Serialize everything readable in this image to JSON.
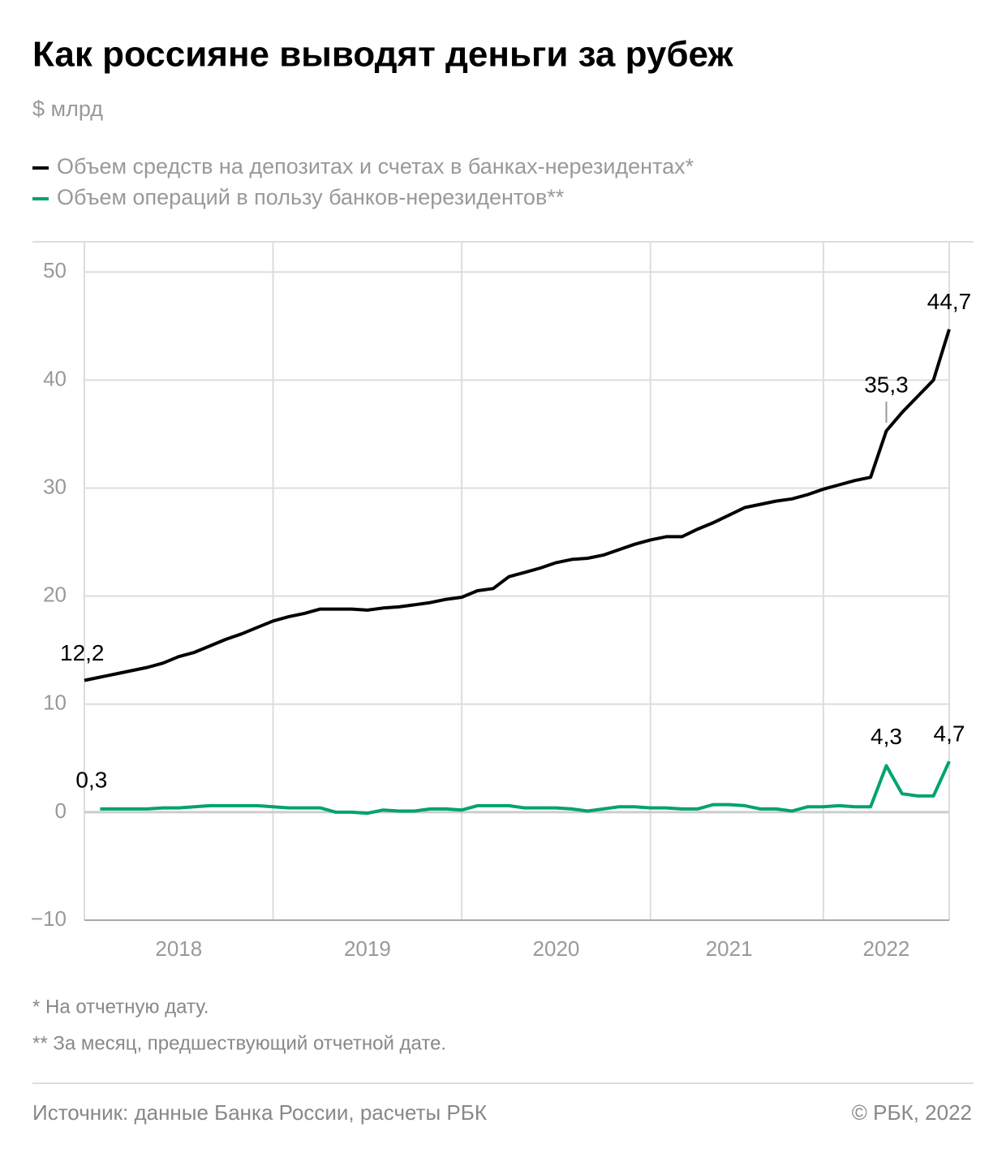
{
  "chart_data": {
    "type": "line",
    "title": "Как россияне выводят деньги за рубеж",
    "subtitle": "$ млрд",
    "categories": [
      null,
      null,
      null,
      null,
      null,
      null,
      "2018",
      null,
      null,
      null,
      null,
      null,
      null,
      null,
      null,
      null,
      null,
      null,
      "2019",
      null,
      null,
      null,
      null,
      null,
      null,
      null,
      null,
      null,
      null,
      null,
      "2020",
      null,
      null,
      null,
      null,
      null,
      null,
      null,
      null,
      null,
      null,
      "2021",
      null,
      null,
      null,
      null,
      null,
      null,
      null,
      null,
      null,
      "2022",
      null,
      null,
      null,
      null
    ],
    "series": [
      {
        "name": "Объем средств на депозитах и счетах в банках-нерезидентах*",
        "color": "#000000",
        "values": [
          12.2,
          12.5,
          12.8,
          13.1,
          13.4,
          13.8,
          14.4,
          14.8,
          15.4,
          16.0,
          16.5,
          17.1,
          17.7,
          18.1,
          18.4,
          18.8,
          18.8,
          18.8,
          18.7,
          18.9,
          19.0,
          19.2,
          19.4,
          19.7,
          19.9,
          20.5,
          20.7,
          21.8,
          22.2,
          22.6,
          23.1,
          23.4,
          23.5,
          23.8,
          24.3,
          24.8,
          25.2,
          25.5,
          25.5,
          26.2,
          26.8,
          27.5,
          28.2,
          28.5,
          28.8,
          29.0,
          29.4,
          29.9,
          30.3,
          30.7,
          31.0,
          35.3,
          37.0,
          38.5,
          40.0,
          44.7
        ],
        "value_labels": [
          "12,2",
          null,
          null,
          null,
          null,
          null,
          null,
          null,
          null,
          null,
          null,
          null,
          null,
          null,
          null,
          null,
          null,
          null,
          null,
          null,
          null,
          null,
          null,
          null,
          null,
          null,
          null,
          null,
          null,
          null,
          null,
          null,
          null,
          null,
          null,
          null,
          null,
          null,
          null,
          null,
          null,
          null,
          null,
          null,
          null,
          null,
          null,
          null,
          null,
          null,
          null,
          "35,3",
          null,
          null,
          null,
          "44,7"
        ]
      },
      {
        "name": "Объем операций в пользу банков-нерезидентов**",
        "color": "#00a36e",
        "values": [
          null,
          0.3,
          0.3,
          0.3,
          0.3,
          0.4,
          0.4,
          0.5,
          0.6,
          0.6,
          0.6,
          0.6,
          0.5,
          0.4,
          0.4,
          0.4,
          0.0,
          0.0,
          -0.1,
          0.2,
          0.1,
          0.1,
          0.3,
          0.3,
          0.2,
          0.6,
          0.6,
          0.6,
          0.4,
          0.4,
          0.4,
          0.3,
          0.1,
          0.3,
          0.5,
          0.5,
          0.4,
          0.4,
          0.3,
          0.3,
          0.7,
          0.7,
          0.6,
          0.3,
          0.3,
          0.1,
          0.5,
          0.5,
          0.6,
          0.5,
          0.5,
          4.3,
          1.7,
          1.5,
          1.5,
          4.7
        ],
        "value_labels": [
          null,
          "0,3",
          null,
          null,
          null,
          null,
          null,
          null,
          null,
          null,
          null,
          null,
          null,
          null,
          null,
          null,
          null,
          null,
          null,
          null,
          null,
          null,
          null,
          null,
          null,
          null,
          null,
          null,
          null,
          null,
          null,
          null,
          null,
          null,
          null,
          null,
          null,
          null,
          null,
          null,
          null,
          null,
          null,
          null,
          null,
          null,
          null,
          null,
          null,
          null,
          null,
          "4,3",
          null,
          null,
          null,
          "4,7"
        ]
      }
    ],
    "ylim": [
      -10,
      52.8
    ],
    "yticks": [
      {
        "value": -10,
        "label": "−10"
      },
      0,
      10,
      20,
      30,
      40,
      50
    ],
    "grid": true,
    "footnotes": [
      "* На отчетную дату.",
      "** За месяц, предшествующий отчетной дате."
    ],
    "source": "Источник: данные Банка России, расчеты РБК",
    "copyright": "© РБК, 2022"
  }
}
